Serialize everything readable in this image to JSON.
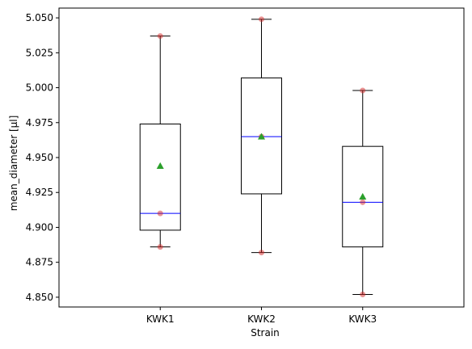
{
  "chart_data": {
    "type": "box",
    "xlabel": "Strain",
    "ylabel": "mean_diameter [µl]",
    "ylim": [
      4.843,
      5.057
    ],
    "yticks": [
      "4.850",
      "4.875",
      "4.900",
      "4.925",
      "4.950",
      "4.975",
      "5.000",
      "5.025",
      "5.050"
    ],
    "yticks_values": [
      4.85,
      4.875,
      4.9,
      4.925,
      4.95,
      4.975,
      5.0,
      5.025,
      5.05
    ],
    "categories": [
      "KWK1",
      "KWK2",
      "KWK3"
    ],
    "boxes": [
      {
        "name": "KWK1",
        "whisker_low": 4.886,
        "q1": 4.898,
        "median": 4.91,
        "q3": 4.974,
        "whisker_high": 5.037,
        "mean": 4.944,
        "points": [
          4.886,
          4.91,
          5.037
        ]
      },
      {
        "name": "KWK2",
        "whisker_low": 4.882,
        "q1": 4.924,
        "median": 4.965,
        "q3": 5.007,
        "whisker_high": 5.049,
        "mean": 4.965,
        "points": [
          4.882,
          4.965,
          5.049
        ]
      },
      {
        "name": "KWK3",
        "whisker_low": 4.852,
        "q1": 4.886,
        "median": 4.918,
        "q3": 4.958,
        "whisker_high": 4.998,
        "mean": 4.922,
        "points": [
          4.852,
          4.918,
          4.998
        ]
      }
    ],
    "colors": {
      "box": "#000000",
      "median": "#0000ff",
      "mean": "#2ca02c",
      "points": "#d62728"
    },
    "grid": false,
    "legend": "none"
  }
}
